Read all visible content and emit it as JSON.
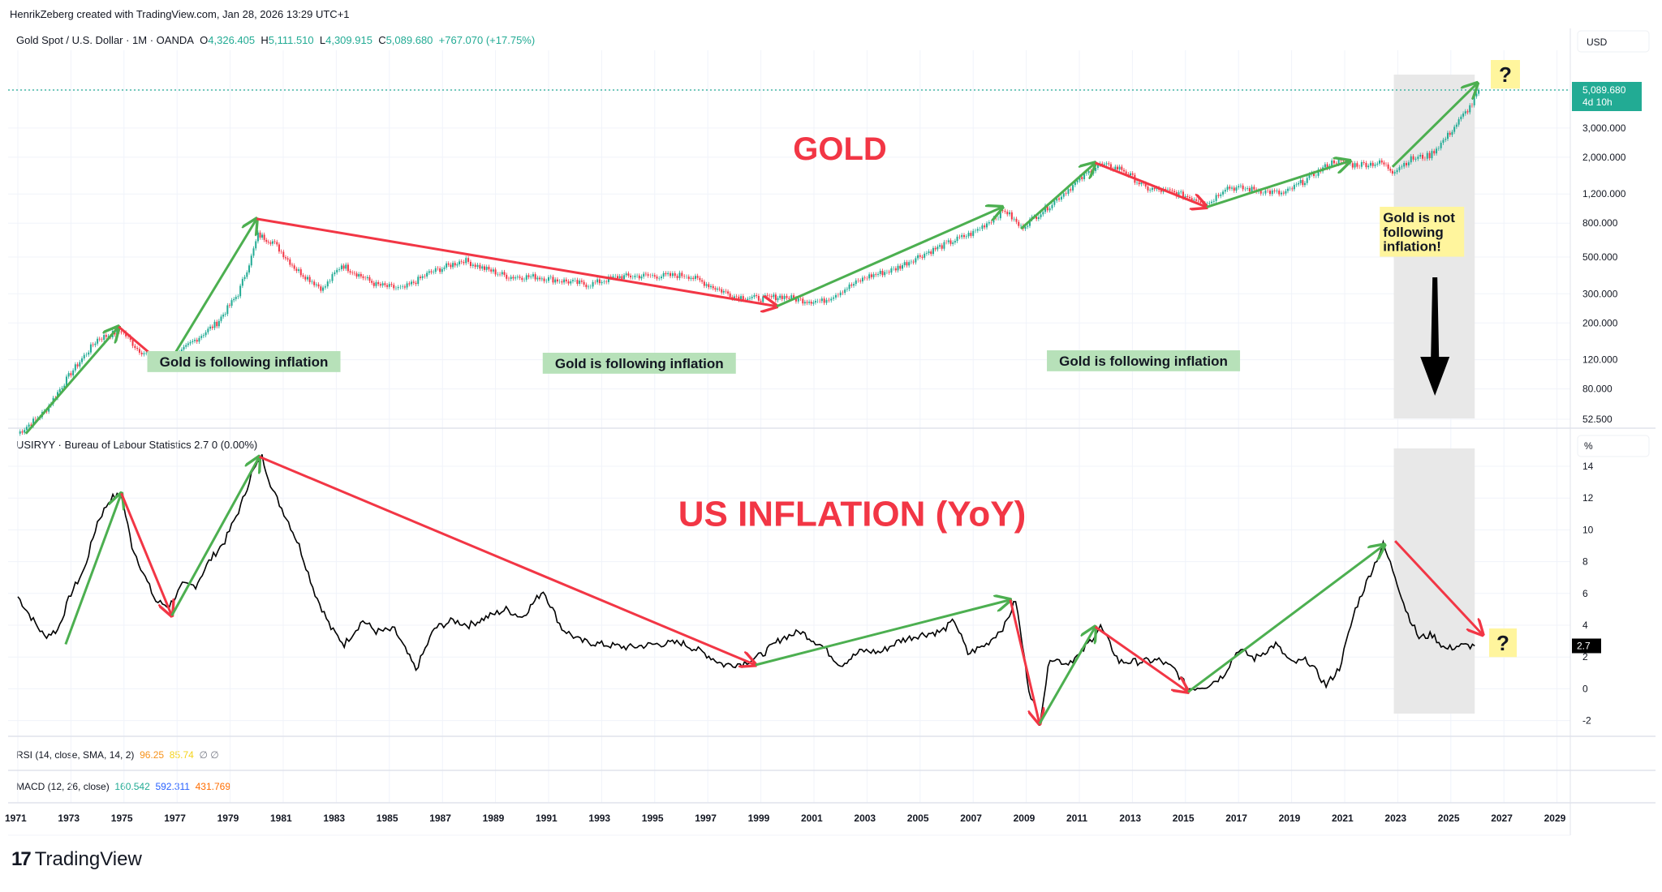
{
  "header": {
    "credit": "HenrikZeberg created with TradingView.com, Jan 28, 2026 13:29 UTC+1"
  },
  "gold_legend": {
    "symbol": "Gold Spot / U.S. Dollar · 1M · OANDA",
    "o_label": "O",
    "o": "4,326.405",
    "h_label": "H",
    "h": "5,111.510",
    "l_label": "L",
    "l": "4,309.915",
    "c_label": "C",
    "c": "5,089.680",
    "change": "+767.070 (+17.75%)"
  },
  "cpi_legend": {
    "text": "USIRYY · Bureau of Labour Statistics  2.7  0 (0.00%)"
  },
  "rsi_legend": {
    "label": "RSI (14, close, SMA, 14, 2)",
    "v1": "96.25",
    "v2": "85.74",
    "v3": "∅  ∅"
  },
  "macd_legend": {
    "label": "MACD (12, 26, close)",
    "v1": "160.542",
    "v2": "592.311",
    "v3": "431.769"
  },
  "branding": {
    "logo_mark": "17",
    "logo_text": "TradingView"
  },
  "colors": {
    "up": "#22ab94",
    "down": "#f23645",
    "arrow_green": "#4caf50",
    "arrow_red": "#f23645",
    "title_red": "#f23645",
    "note_green_bg": "#b7e1b9",
    "note_yellow_bg": "#fff59d",
    "shade": "#e8e8e8",
    "price_tag": "#22ab94"
  },
  "chart_data": [
    {
      "type": "line",
      "title": "GOLD",
      "series_name": "Gold Spot / U.S. Dollar (monthly, log scale)",
      "yscale": "log",
      "currency_label": "USD",
      "ylim": [
        48,
        6500
      ],
      "y_ticks": [
        "5,089.680",
        "3,000.000",
        "2,000.000",
        "1,200.000",
        "800.000",
        "500.000",
        "300.000",
        "200.000",
        "120.000",
        "80.000",
        "52.500"
      ],
      "y_tick_values": [
        5089.68,
        3000,
        2000,
        1200,
        800,
        500,
        300,
        200,
        120,
        80,
        52.5
      ],
      "last_price_tag": {
        "value": "5,089.680",
        "countdown": "4d 10h"
      },
      "x": [
        1971,
        1972,
        1973,
        1974,
        1974.9,
        1975.5,
        1976.6,
        1977.5,
        1978.5,
        1979.3,
        1979.8,
        1980.05,
        1980.6,
        1981.5,
        1982.5,
        1983.2,
        1984.5,
        1985.5,
        1986.5,
        1987.8,
        1988.5,
        1989.5,
        1990.5,
        1991.5,
        1992.5,
        1993.6,
        1994.5,
        1995.5,
        1996.2,
        1997.2,
        1998,
        1999,
        1999.8,
        2000.5,
        2001.3,
        2002,
        2003,
        2004,
        2005,
        2006.4,
        2007,
        2008.2,
        2008.8,
        2009.8,
        2010.5,
        2011.7,
        2012.6,
        2013.5,
        2014.5,
        2015.9,
        2016.5,
        2017.5,
        2018.7,
        2019.5,
        2020.6,
        2021.3,
        2022.4,
        2022.8,
        2023.5,
        2024.2,
        2024.8,
        2025.3,
        2025.8,
        2026.05
      ],
      "values": [
        43,
        58,
        100,
        160,
        180,
        140,
        110,
        150,
        200,
        300,
        500,
        680,
        620,
        420,
        320,
        450,
        340,
        320,
        400,
        480,
        430,
        380,
        380,
        360,
        340,
        380,
        385,
        385,
        390,
        330,
        290,
        280,
        290,
        275,
        270,
        310,
        380,
        420,
        510,
        640,
        700,
        960,
        750,
        1000,
        1250,
        1800,
        1700,
        1300,
        1230,
        1060,
        1320,
        1280,
        1200,
        1450,
        1900,
        1800,
        1850,
        1650,
        1950,
        2050,
        2600,
        3300,
        4200,
        5089.68
      ],
      "annotations": [
        {
          "text": "GOLD",
          "kind": "title"
        },
        {
          "text": "Gold is following inflation",
          "kind": "note-green",
          "at_year": 1978.6
        },
        {
          "text": "Gold is following inflation",
          "kind": "note-green",
          "at_year": 1993.5
        },
        {
          "text": "Gold is following inflation",
          "kind": "note-green",
          "at_year": 2012.5
        },
        {
          "text": "Gold is not following inflation!",
          "kind": "note-yellow",
          "at_year": 2022.9
        },
        {
          "text": "?",
          "kind": "note-yellow",
          "at_year": 2026.5
        }
      ],
      "arrows": [
        {
          "color": "green",
          "from": [
            1971.3,
            43
          ],
          "to": [
            1974.8,
            190
          ]
        },
        {
          "color": "red",
          "from": [
            1974.8,
            190
          ],
          "to": [
            1976.6,
            108
          ]
        },
        {
          "color": "green",
          "from": [
            1976.6,
            108
          ],
          "to": [
            1980.0,
            850
          ]
        },
        {
          "color": "red",
          "from": [
            1980.0,
            850
          ],
          "to": [
            1999.6,
            252
          ]
        },
        {
          "color": "green",
          "from": [
            1999.6,
            252
          ],
          "to": [
            2008.1,
            1000
          ]
        },
        {
          "color": "green",
          "from": [
            2008.8,
            740
          ],
          "to": [
            2011.6,
            1850
          ]
        },
        {
          "color": "red",
          "from": [
            2011.6,
            1850
          ],
          "to": [
            2015.8,
            1000
          ]
        },
        {
          "color": "green",
          "from": [
            2015.8,
            1000
          ],
          "to": [
            2021.2,
            1900
          ]
        },
        {
          "color": "green",
          "from": [
            2022.8,
            1750
          ],
          "to": [
            2026.0,
            5600
          ]
        }
      ]
    },
    {
      "type": "line",
      "title": "US INFLATION (YoY)",
      "series_name": "USIRYY · Bureau of Labour Statistics",
      "ylabel": "%",
      "ylim": [
        -2.6,
        15.5
      ],
      "y_ticks": [
        14,
        12,
        10,
        8,
        6,
        4,
        2,
        0,
        -2
      ],
      "last_value": "2.7",
      "x": [
        1971,
        1971.5,
        1972,
        1972.5,
        1973,
        1973.5,
        1974,
        1974.5,
        1974.9,
        1975.3,
        1975.8,
        1976.2,
        1976.7,
        1977.2,
        1977.7,
        1978.2,
        1978.8,
        1979.4,
        1979.8,
        1980.2,
        1980.6,
        1981.2,
        1981.6,
        1982.2,
        1982.8,
        1983.3,
        1984,
        1984.5,
        1985.2,
        1986,
        1986.7,
        1987.4,
        1988,
        1988.8,
        1989.4,
        1990,
        1990.8,
        1991.5,
        1992.2,
        1993,
        1994,
        1995,
        1996,
        1996.8,
        1997.6,
        1998.3,
        1999,
        1999.8,
        2000.5,
        2001.3,
        2002,
        2002.8,
        2003.5,
        2004.2,
        2005,
        2005.8,
        2006.3,
        2006.8,
        2007.5,
        2008.2,
        2008.6,
        2009.1,
        2009.5,
        2009.9,
        2010.5,
        2011,
        2011.8,
        2012.5,
        2013.2,
        2014,
        2014.6,
        2015.1,
        2015.8,
        2016.4,
        2017,
        2017.6,
        2018.4,
        2019,
        2019.6,
        2020.3,
        2020.8,
        2021.4,
        2021.9,
        2022.45,
        2022.9,
        2023.3,
        2023.8,
        2024.3,
        2024.8,
        2025.3,
        2025.9
      ],
      "values": [
        5.8,
        4.5,
        3.3,
        3.7,
        6.0,
        7.5,
        10.5,
        12.0,
        12.2,
        9.0,
        7.0,
        5.5,
        5.2,
        6.5,
        6.5,
        8.0,
        9.3,
        11.5,
        13.5,
        14.6,
        12.5,
        10.5,
        9.0,
        6.0,
        3.8,
        2.8,
        4.3,
        3.6,
        3.7,
        1.2,
        3.8,
        4.3,
        4.0,
        4.6,
        5.0,
        4.5,
        6.2,
        3.8,
        3.0,
        2.8,
        2.6,
        2.8,
        2.9,
        2.3,
        1.5,
        1.6,
        2.1,
        3.2,
        3.6,
        2.7,
        1.5,
        2.4,
        2.3,
        3.0,
        3.4,
        3.6,
        4.3,
        2.2,
        2.8,
        4.0,
        5.6,
        0.0,
        -2.1,
        2.0,
        1.6,
        2.1,
        3.9,
        1.7,
        1.7,
        1.8,
        1.2,
        0.0,
        0.2,
        0.8,
        2.5,
        1.9,
        2.8,
        1.6,
        1.8,
        0.2,
        1.3,
        5.0,
        7.0,
        9.06,
        7.1,
        5.0,
        3.2,
        3.4,
        2.5,
        2.7,
        2.7
      ],
      "annotations": [
        {
          "text": "US INFLATION (YoY)",
          "kind": "title"
        },
        {
          "text": "?",
          "kind": "note-yellow",
          "at_year": 2026.5
        }
      ],
      "arrows": [
        {
          "color": "green",
          "from": [
            1972.8,
            2.8
          ],
          "to": [
            1974.9,
            12.3
          ]
        },
        {
          "color": "red",
          "from": [
            1974.9,
            12.3
          ],
          "to": [
            1976.8,
            4.6
          ]
        },
        {
          "color": "green",
          "from": [
            1976.8,
            4.6
          ],
          "to": [
            1980.1,
            14.6
          ]
        },
        {
          "color": "red",
          "from": [
            1980.1,
            14.6
          ],
          "to": [
            1998.8,
            1.5
          ]
        },
        {
          "color": "green",
          "from": [
            1998.8,
            1.5
          ],
          "to": [
            2008.4,
            5.6
          ]
        },
        {
          "color": "red",
          "from": [
            2008.4,
            5.6
          ],
          "to": [
            2009.5,
            -2.2
          ]
        },
        {
          "color": "green",
          "from": [
            2009.5,
            -2.2
          ],
          "to": [
            2011.6,
            3.9
          ]
        },
        {
          "color": "red",
          "from": [
            2011.6,
            3.9
          ],
          "to": [
            2015.1,
            -0.2
          ]
        },
        {
          "color": "green",
          "from": [
            2015.1,
            -0.2
          ],
          "to": [
            2022.5,
            9.06
          ]
        },
        {
          "color": "red",
          "from": [
            2022.9,
            9.3
          ],
          "to": [
            2026.2,
            3.4
          ]
        }
      ]
    }
  ],
  "time_axis": {
    "ticks": [
      "1971",
      "1973",
      "1975",
      "1977",
      "1979",
      "1981",
      "1983",
      "1985",
      "1987",
      "1989",
      "1991",
      "1993",
      "1995",
      "1997",
      "1999",
      "2001",
      "2003",
      "2005",
      "2007",
      "2009",
      "2011",
      "2013",
      "2015",
      "2017",
      "2019",
      "2021",
      "2023",
      "2025",
      "2027",
      "2029"
    ]
  }
}
